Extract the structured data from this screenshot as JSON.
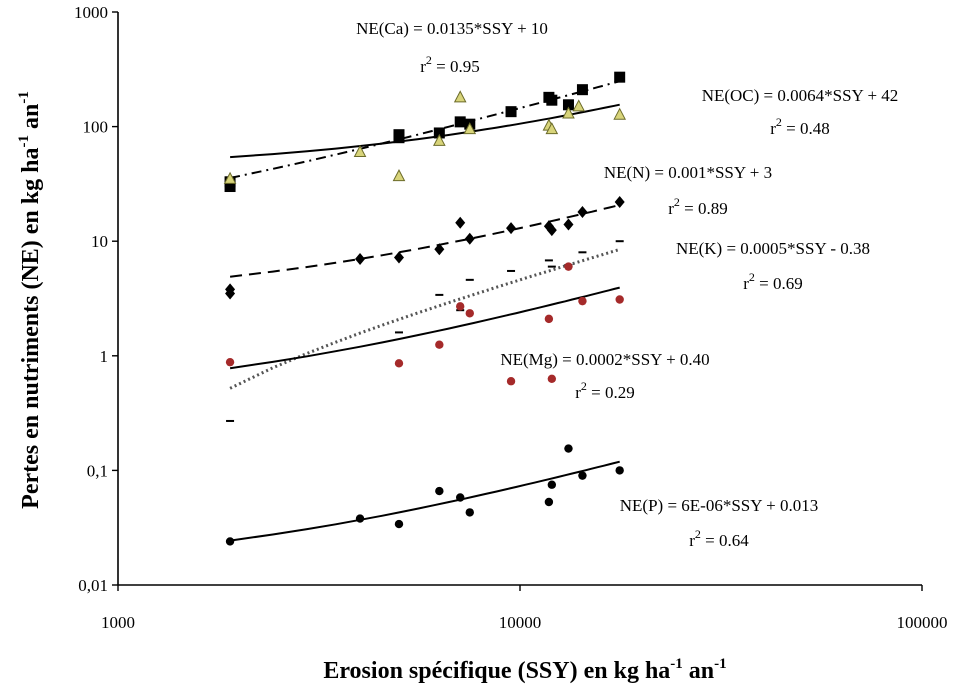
{
  "chart_data": {
    "type": "scatter",
    "title": "",
    "xlabel": {
      "main": "Erosion spécifique (SSY) en kg ha",
      "sup1": "-1",
      "mid": " an",
      "sup2": "-1"
    },
    "ylabel": {
      "main": "Pertes en nutriments (NE) en kg ha",
      "sup1": "-1",
      "mid": " an",
      "sup2": "-1"
    },
    "x_scale": "log",
    "y_scale": "log",
    "xlim": [
      1000,
      100000
    ],
    "ylim": [
      0.01,
      1000
    ],
    "x_ticks": [
      {
        "value": 1000,
        "label": "1000"
      },
      {
        "value": 10000,
        "label": "10000"
      },
      {
        "value": 100000,
        "label": "100000"
      }
    ],
    "y_ticks": [
      {
        "value": 0.01,
        "label": "0,01"
      },
      {
        "value": 0.1,
        "label": "0,1"
      },
      {
        "value": 1,
        "label": "1"
      },
      {
        "value": 10,
        "label": "10"
      },
      {
        "value": 100,
        "label": "100"
      },
      {
        "value": 1000,
        "label": "1000"
      }
    ],
    "grid": false,
    "series": [
      {
        "color": "#000000",
        "marker": "square",
        "trend_style": "dash-dot",
        "equation": "NE(Ca) = 0.0135*SSY + 10",
        "r2_label": "= 0.95",
        "points": [
          [
            1900,
            30
          ],
          [
            1900,
            33
          ],
          [
            5000,
            85
          ],
          [
            5000,
            80
          ],
          [
            6300,
            88
          ],
          [
            7100,
            110
          ],
          [
            7500,
            105
          ],
          [
            9500,
            135
          ],
          [
            11800,
            180
          ],
          [
            12000,
            170
          ],
          [
            13200,
            155
          ],
          [
            14300,
            210
          ],
          [
            17700,
            270
          ]
        ],
        "trend": [
          [
            1900,
            35.6
          ],
          [
            17700,
            249
          ]
        ]
      },
      {
        "color": "#d8d47a",
        "marker": "triangle",
        "trend_style": "solid",
        "equation": "NE(OC) = 0.0064*SSY + 42",
        "r2_label": "= 0.48",
        "points": [
          [
            1900,
            35
          ],
          [
            4000,
            60
          ],
          [
            5000,
            37
          ],
          [
            6300,
            75
          ],
          [
            7100,
            180
          ],
          [
            7500,
            95
          ],
          [
            11800,
            102
          ],
          [
            12000,
            95
          ],
          [
            13200,
            130
          ],
          [
            14000,
            150
          ],
          [
            17700,
            127
          ]
        ],
        "trend": [
          [
            1900,
            54.2
          ],
          [
            17700,
            155.3
          ]
        ]
      },
      {
        "color": "#000000",
        "marker": "diamond",
        "trend_style": "dashed",
        "equation": "NE(N) = 0.001*SSY + 3",
        "r2_label": "= 0.89",
        "points": [
          [
            1900,
            3.5
          ],
          [
            1900,
            3.8
          ],
          [
            4000,
            7
          ],
          [
            5000,
            7.2
          ],
          [
            6300,
            8.5
          ],
          [
            7100,
            14.5
          ],
          [
            7500,
            10.5
          ],
          [
            9500,
            13
          ],
          [
            11800,
            13.5
          ],
          [
            12000,
            12.5
          ],
          [
            13200,
            14
          ],
          [
            14300,
            18
          ],
          [
            17700,
            22
          ]
        ],
        "trend": [
          [
            1900,
            4.9
          ],
          [
            17700,
            20.7
          ]
        ]
      },
      {
        "color": "#000000",
        "marker": "dash",
        "trend_style": "dotted",
        "equation": "NE(K) = 0.0005*SSY - 0.38",
        "r2_label": "= 0.69",
        "points": [
          [
            1900,
            0.27
          ],
          [
            5000,
            1.6
          ],
          [
            6300,
            3.4
          ],
          [
            7100,
            2.5
          ],
          [
            7500,
            4.6
          ],
          [
            9500,
            5.5
          ],
          [
            11800,
            6.8
          ],
          [
            12000,
            6
          ],
          [
            13200,
            6.2
          ],
          [
            14300,
            8
          ],
          [
            17700,
            10
          ]
        ],
        "trend": [
          [
            1900,
            0.52
          ],
          [
            17700,
            8.47
          ]
        ]
      },
      {
        "color": "#a52a2a",
        "marker": "circle",
        "trend_style": "solid",
        "equation": "NE(Mg) = 0.0002*SSY + 0.40",
        "r2_label": "= 0.29",
        "points": [
          [
            1900,
            0.88
          ],
          [
            5000,
            0.86
          ],
          [
            6300,
            1.25
          ],
          [
            7100,
            2.7
          ],
          [
            7500,
            2.35
          ],
          [
            9500,
            0.6
          ],
          [
            11800,
            2.1
          ],
          [
            12000,
            0.63
          ],
          [
            13200,
            6
          ],
          [
            14300,
            3
          ],
          [
            17700,
            3.1
          ]
        ],
        "trend": [
          [
            1900,
            0.78
          ],
          [
            17700,
            3.94
          ]
        ]
      },
      {
        "color": "#000000",
        "marker": "circle",
        "trend_style": "solid",
        "equation": "NE(P) = 6E-06*SSY + 0.013",
        "r2_label": "= 0.64",
        "points": [
          [
            1900,
            0.024
          ],
          [
            4000,
            0.038
          ],
          [
            5000,
            0.034
          ],
          [
            6300,
            0.066
          ],
          [
            7100,
            0.058
          ],
          [
            7500,
            0.043
          ],
          [
            11800,
            0.053
          ],
          [
            12000,
            0.075
          ],
          [
            13200,
            0.155
          ],
          [
            14300,
            0.09
          ],
          [
            17700,
            0.1
          ]
        ],
        "trend": [
          [
            1900,
            0.0244
          ],
          [
            17700,
            0.1192
          ]
        ]
      }
    ]
  }
}
